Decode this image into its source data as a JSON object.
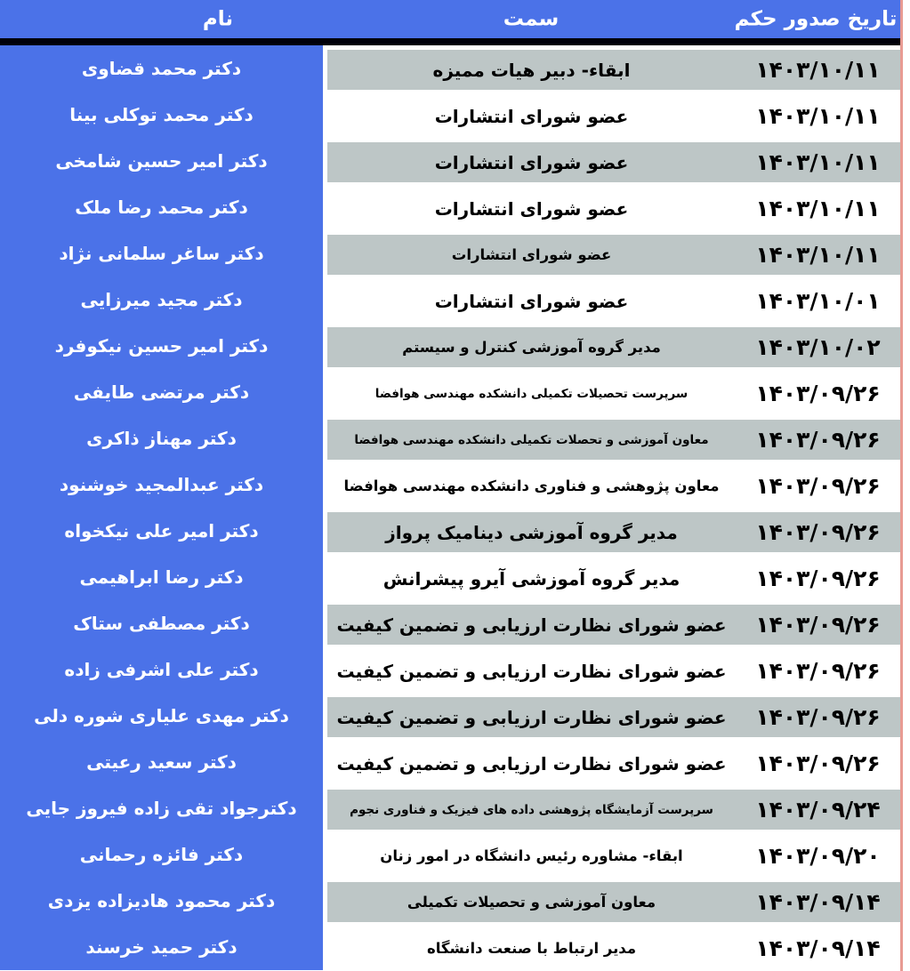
{
  "colors": {
    "header_bg": "#4b72e8",
    "name_column_bg": "#4b72e8",
    "stripe_gray": "#bdc6c6",
    "separator_black": "#00000a",
    "right_accent_line": "#e89b93",
    "header_text": "#ffffff",
    "body_text": "#000000"
  },
  "table": {
    "headers": {
      "name": "نام",
      "position": "سمت",
      "date": "تاریخ صدور حکم"
    },
    "rows": [
      {
        "name": "دکتر محمد قضاوی",
        "position": "ابقاء- دبیر هیات ممیزه",
        "date": "۱۴۰۳/۱۰/۱۱",
        "size": "lg"
      },
      {
        "name": "دکتر محمد توکلی بینا",
        "position": "عضو شورای انتشارات",
        "date": "۱۴۰۳/۱۰/۱۱",
        "size": "lg"
      },
      {
        "name": "دکتر امیر حسین شامخی",
        "position": "عضو شورای انتشارات",
        "date": "۱۴۰۳/۱۰/۱۱",
        "size": "lg"
      },
      {
        "name": "دکتر محمد رضا ملک",
        "position": "عضو شورای انتشارات",
        "date": "۱۴۰۳/۱۰/۱۱",
        "size": "lg"
      },
      {
        "name": "دکتر ساغر سلمانی نژاد",
        "position": "عضو شورای انتشارات",
        "date": "۱۴۰۳/۱۰/۱۱",
        "size": "md"
      },
      {
        "name": "دکتر مجید میرزایی",
        "position": "عضو شورای انتشارات",
        "date": "۱۴۰۳/۱۰/۰۱",
        "size": "lg"
      },
      {
        "name": "دکتر امیر حسین نیکوفرد",
        "position": "مدیر گروه آموزشی کنترل و سیستم",
        "date": "۱۴۰۳/۱۰/۰۲",
        "size": "md"
      },
      {
        "name": "دکتر مرتضی طایفی",
        "position": "سرپرست تحصیلات تکمیلی دانشکده مهندسی هوافضا",
        "date": "۱۴۰۳/۰۹/۲۶",
        "size": "sm"
      },
      {
        "name": "دکتر مهناز ذاکری",
        "position": "معاون آموزشی و تحصلات تکمیلی دانشکده مهندسی هوافضا",
        "date": "۱۴۰۳/۰۹/۲۶",
        "size": "sm"
      },
      {
        "name": "دکتر عبدالمجید خوشنود",
        "position": "معاون پژوهشی و فناوری دانشکده مهندسی هوافضا",
        "date": "۱۴۰۳/۰۹/۲۶",
        "size": "md"
      },
      {
        "name": "دکتر امیر علی نیکخواه",
        "position": "مدیر گروه آموزشی دینامیک پرواز",
        "date": "۱۴۰۳/۰۹/۲۶",
        "size": "lg"
      },
      {
        "name": "دکتر رضا ابراهیمی",
        "position": "مدیر گروه آموزشی آیرو پیشرانش",
        "date": "۱۴۰۳/۰۹/۲۶",
        "size": "lg"
      },
      {
        "name": "دکتر مصطفی ستاک",
        "position": "عضو شورای نظارت ارزیابی و تضمین کیفیت",
        "date": "۱۴۰۳/۰۹/۲۶",
        "size": "lg"
      },
      {
        "name": "دکتر علی اشرفی زاده",
        "position": "عضو شورای نظارت ارزیابی و تضمین کیفیت",
        "date": "۱۴۰۳/۰۹/۲۶",
        "size": "lg"
      },
      {
        "name": "دکتر مهدی علیاری شوره دلی",
        "position": "عضو شورای نظارت ارزیابی و تضمین کیفیت",
        "date": "۱۴۰۳/۰۹/۲۶",
        "size": "lg"
      },
      {
        "name": "دکتر سعید رعیتی",
        "position": "عضو شورای نظارت ارزیابی و تضمین کیفیت",
        "date": "۱۴۰۳/۰۹/۲۶",
        "size": "lg"
      },
      {
        "name": "دکترجواد تقی زاده فیروز جایی",
        "position": "سرپرست آزمایشگاه پژوهشی داده های فیزیک و فناوری نجوم",
        "date": "۱۴۰۳/۰۹/۲۴",
        "size": "sm"
      },
      {
        "name": "دکتر فائزه رحمانی",
        "position": "ابقاء- مشاوره رئیس دانشگاه در امور زنان",
        "date": "۱۴۰۳/۰۹/۲۰",
        "size": "md"
      },
      {
        "name": "دکتر محمود هادیزاده یزدی",
        "position": "معاون آموزشی و تحصیلات تکمیلی",
        "date": "۱۴۰۳/۰۹/۱۴",
        "size": "md"
      },
      {
        "name": "دکتر حمید خرسند",
        "position": "مدیر ارتباط با صنعت دانشگاه",
        "date": "۱۴۰۳/۰۹/۱۴",
        "size": "md"
      }
    ]
  }
}
